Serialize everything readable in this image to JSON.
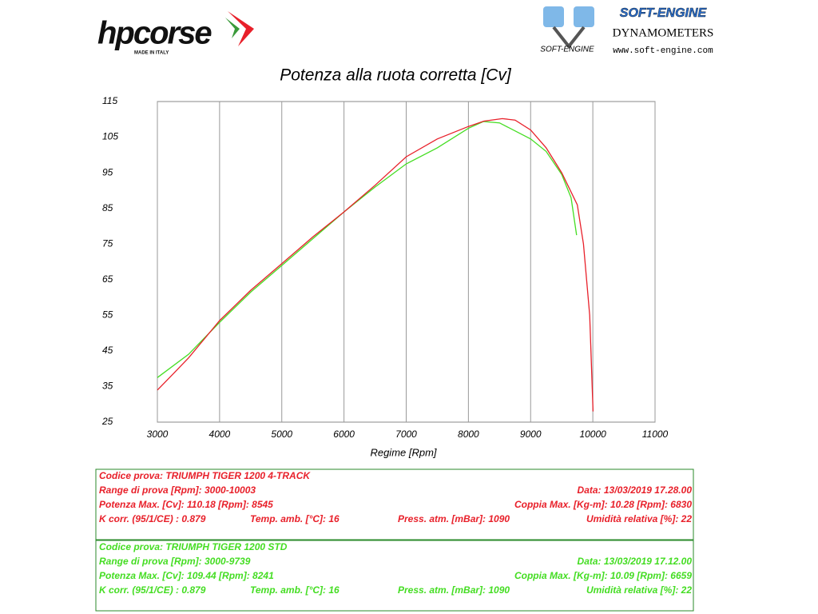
{
  "header": {
    "brand": "hpcorse",
    "brand_tag": "MADE IN ITALY",
    "dyno_brand": "SOFT-ENGINE",
    "dyno_title": "DYNAMOMETERS",
    "dyno_url": "www.soft-engine.com",
    "dyno_logo_text": "SOFT-ENGINE"
  },
  "chart_data": {
    "type": "line",
    "title": "Potenza alla ruota corretta [Cv]",
    "x_label": "Regime [Rpm]",
    "xlim": [
      3000,
      11000
    ],
    "xticks": [
      3000,
      4000,
      5000,
      6000,
      7000,
      8000,
      9000,
      10000,
      11000
    ],
    "ylim": [
      25,
      115
    ],
    "yticks": [
      25,
      35,
      45,
      55,
      65,
      75,
      85,
      95,
      105,
      115
    ],
    "grid": "x",
    "series": [
      {
        "color": "#e8202a",
        "x": [
          3000,
          3250,
          3500,
          4000,
          4500,
          5000,
          5500,
          6000,
          6500,
          7000,
          7500,
          8000,
          8250,
          8545,
          8750,
          9000,
          9250,
          9500,
          9750,
          9850,
          9950,
          10003
        ],
        "values": [
          34,
          38.5,
          43,
          53.5,
          62,
          69.5,
          77,
          84,
          91.5,
          99.5,
          104.5,
          108,
          109.5,
          110.2,
          109.8,
          107,
          102,
          95,
          86,
          75,
          55,
          28
        ]
      },
      {
        "color": "#44dd22",
        "x": [
          3000,
          3500,
          4000,
          4500,
          5000,
          5500,
          6000,
          6500,
          7000,
          7500,
          8000,
          8241,
          8500,
          9000,
          9250,
          9500,
          9650,
          9739
        ],
        "values": [
          37.5,
          44,
          53,
          61.5,
          69,
          76.5,
          84,
          91,
          97.5,
          102,
          107.5,
          109.4,
          109,
          104.5,
          101,
          94.5,
          88,
          77.5
        ]
      }
    ]
  },
  "test_tables": [
    {
      "color": "#e8202a",
      "title": "Codice prova: TRIUMPH TIGER 1200 4-TRACK",
      "range": "Range di prova [Rpm]: 3000-10003",
      "date": "Data: 13/03/2019   17.28.00",
      "power": "Potenza Max. [Cv]: 110.18   [Rpm]: 8545",
      "torque": "Coppia Max. [Kg-m]: 10.28   [Rpm]: 6830",
      "kcorr": "K corr. (95/1/CE) : 0.879",
      "temp": "Temp. amb. [°C]: 16",
      "press": "Press. atm. [mBar]: 1090",
      "humidity": "Umidità relativa [%]: 22"
    },
    {
      "color": "#44dd22",
      "title": "Codice prova: TRIUMPH TIGER 1200 STD",
      "range": "Range di prova [Rpm]: 3000-9739",
      "date": "Data: 13/03/2019   17.12.00",
      "power": "Potenza Max. [Cv]: 109.44   [Rpm]: 8241",
      "torque": "Coppia Max. [Kg-m]: 10.09   [Rpm]: 6659",
      "kcorr": "K corr. (95/1/CE) : 0.879",
      "temp": "Temp. amb. [°C]: 16",
      "press": "Press. atm. [mBar]: 1090",
      "humidity": "Umidità relativa [%]: 22"
    }
  ]
}
